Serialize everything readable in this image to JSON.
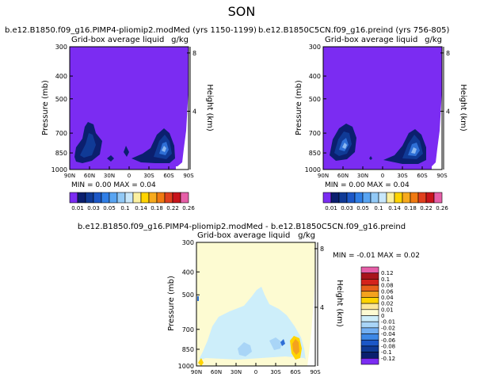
{
  "page_title": "SON",
  "colors": {
    "purple": "#7b2cf2",
    "deep_navy": "#0b1f6e",
    "navy": "#103a96",
    "mid_blue": "#2f6fd6",
    "light_blue": "#8cb7f0",
    "pale_cream": "#fdfbd2",
    "pale_cyan": "#cdeefa",
    "orange": "#f4a21e",
    "yellow": "#ffd400"
  },
  "pressure_ticks": [
    "300",
    "400",
    "500",
    "700",
    "850",
    "1000"
  ],
  "lat_ticks": [
    "90N",
    "60N",
    "30N",
    "0",
    "30S",
    "60S",
    "90S"
  ],
  "height_ticks": [
    "8",
    "4"
  ],
  "abs_colorbar": {
    "colors": [
      "#7b2cf2",
      "#0b1f6e",
      "#103a96",
      "#1c57c7",
      "#2f7ee6",
      "#58a4f2",
      "#92c9f6",
      "#c8e7fb",
      "#fbf0a0",
      "#ffd400",
      "#f7aa1d",
      "#f07a12",
      "#e0401e",
      "#c8141b",
      "#e65fa8"
    ],
    "labels": [
      "0.01",
      "0.03",
      "0.05",
      "0.1",
      "0.14",
      "0.18",
      "0.22",
      "0.26"
    ]
  },
  "diff_colorbar": {
    "colors": [
      "#7b2cf2",
      "#0b1f6e",
      "#103a96",
      "#1c57c7",
      "#3d88e6",
      "#72aff2",
      "#a9d5f7",
      "#cdeefa",
      "#fdfbd2",
      "#fbe79a",
      "#ffd400",
      "#f4a21e",
      "#e6601b",
      "#d4231c",
      "#a8141c",
      "#e65fa8"
    ],
    "labels": [
      "-0.12",
      "-0.1",
      "-0.08",
      "-0.06",
      "-0.04",
      "-0.02",
      "-0.01",
      "0",
      "0.01",
      "0.02",
      "0.04",
      "0.06",
      "0.08",
      "0.1",
      "0.12"
    ]
  },
  "chart_data": [
    {
      "type": "heatmap",
      "title": "b.e12.B1850.f09_g16.PIMP4-pliomip2.modMed (yrs 1150-1199)",
      "subtitle": "Grid-box average liquid",
      "units": "g/kg",
      "ylabel": "Pressure (mb)",
      "ylabel_right": "Height (km)",
      "min_label": "MIN =   0.00   MAX =   0.04",
      "min": 0.0,
      "max": 0.04
    },
    {
      "type": "heatmap",
      "title": "b.e12.B1850C5CN.f09_g16.preind (yrs 756-805)",
      "subtitle": "Grid-box average liquid",
      "units": "g/kg",
      "ylabel": "Pressure (mb)",
      "ylabel_right": "Height (km)",
      "min_label": "MIN =   0.00   MAX =   0.04",
      "min": 0.0,
      "max": 0.04
    },
    {
      "type": "heatmap",
      "title": "b.e12.B1850.f09_g16.PIMP4-pliomip2.modMed  -  b.e12.B1850C5CN.f09_g16.preind",
      "subtitle": "Grid-box average liquid",
      "units": "g/kg",
      "ylabel": "Pressure (mb)",
      "ylabel_right": "Height (km)",
      "min_label": "MIN =   -0.01    MAX =    0.02",
      "min": -0.01,
      "max": 0.02
    }
  ]
}
